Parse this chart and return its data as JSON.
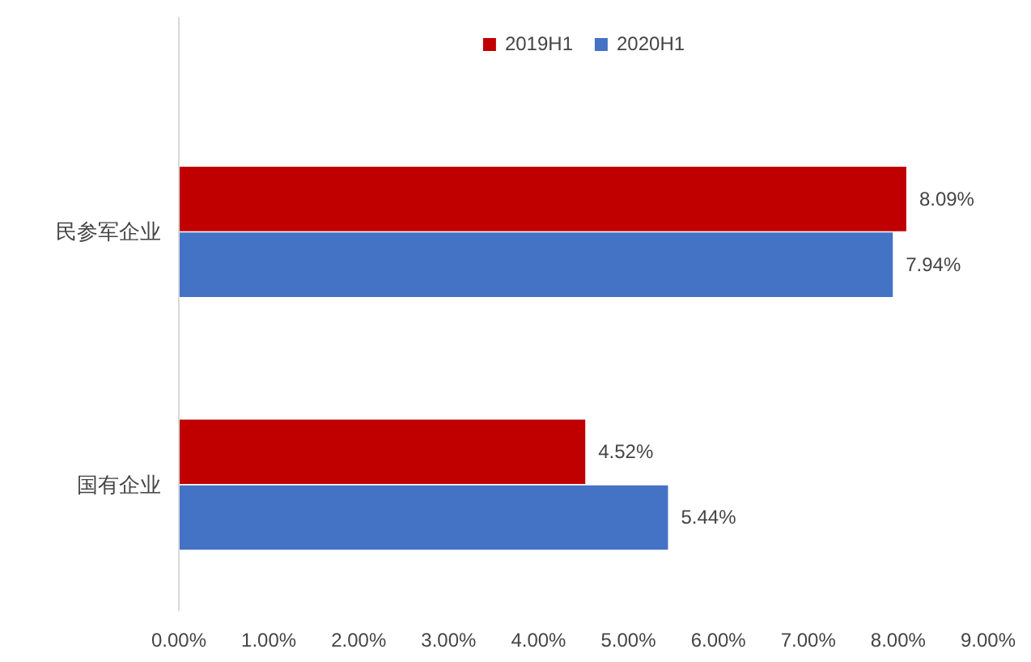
{
  "chart_data": {
    "type": "bar",
    "orientation": "horizontal",
    "categories": [
      "民参军企业",
      "国有企业"
    ],
    "series": [
      {
        "name": "2019H1",
        "color": "#c00000",
        "values": [
          8.09,
          4.52
        ],
        "value_labels": [
          "8.09%",
          "4.52%"
        ]
      },
      {
        "name": "2020H1",
        "color": "#4472c4",
        "values": [
          7.94,
          5.44
        ],
        "value_labels": [
          "7.94%",
          "5.44%"
        ]
      }
    ],
    "xlim": [
      0,
      9
    ],
    "xticks": [
      {
        "value": 0,
        "label": "0.00%"
      },
      {
        "value": 1,
        "label": "1.00%"
      },
      {
        "value": 2,
        "label": "2.00%"
      },
      {
        "value": 3,
        "label": "3.00%"
      },
      {
        "value": 4,
        "label": "4.00%"
      },
      {
        "value": 5,
        "label": "5.00%"
      },
      {
        "value": 6,
        "label": "6.00%"
      },
      {
        "value": 7,
        "label": "7.00%"
      },
      {
        "value": 8,
        "label": "8.00%"
      },
      {
        "value": 9,
        "label": "9.00%"
      }
    ],
    "legend": "top",
    "grid": false
  }
}
